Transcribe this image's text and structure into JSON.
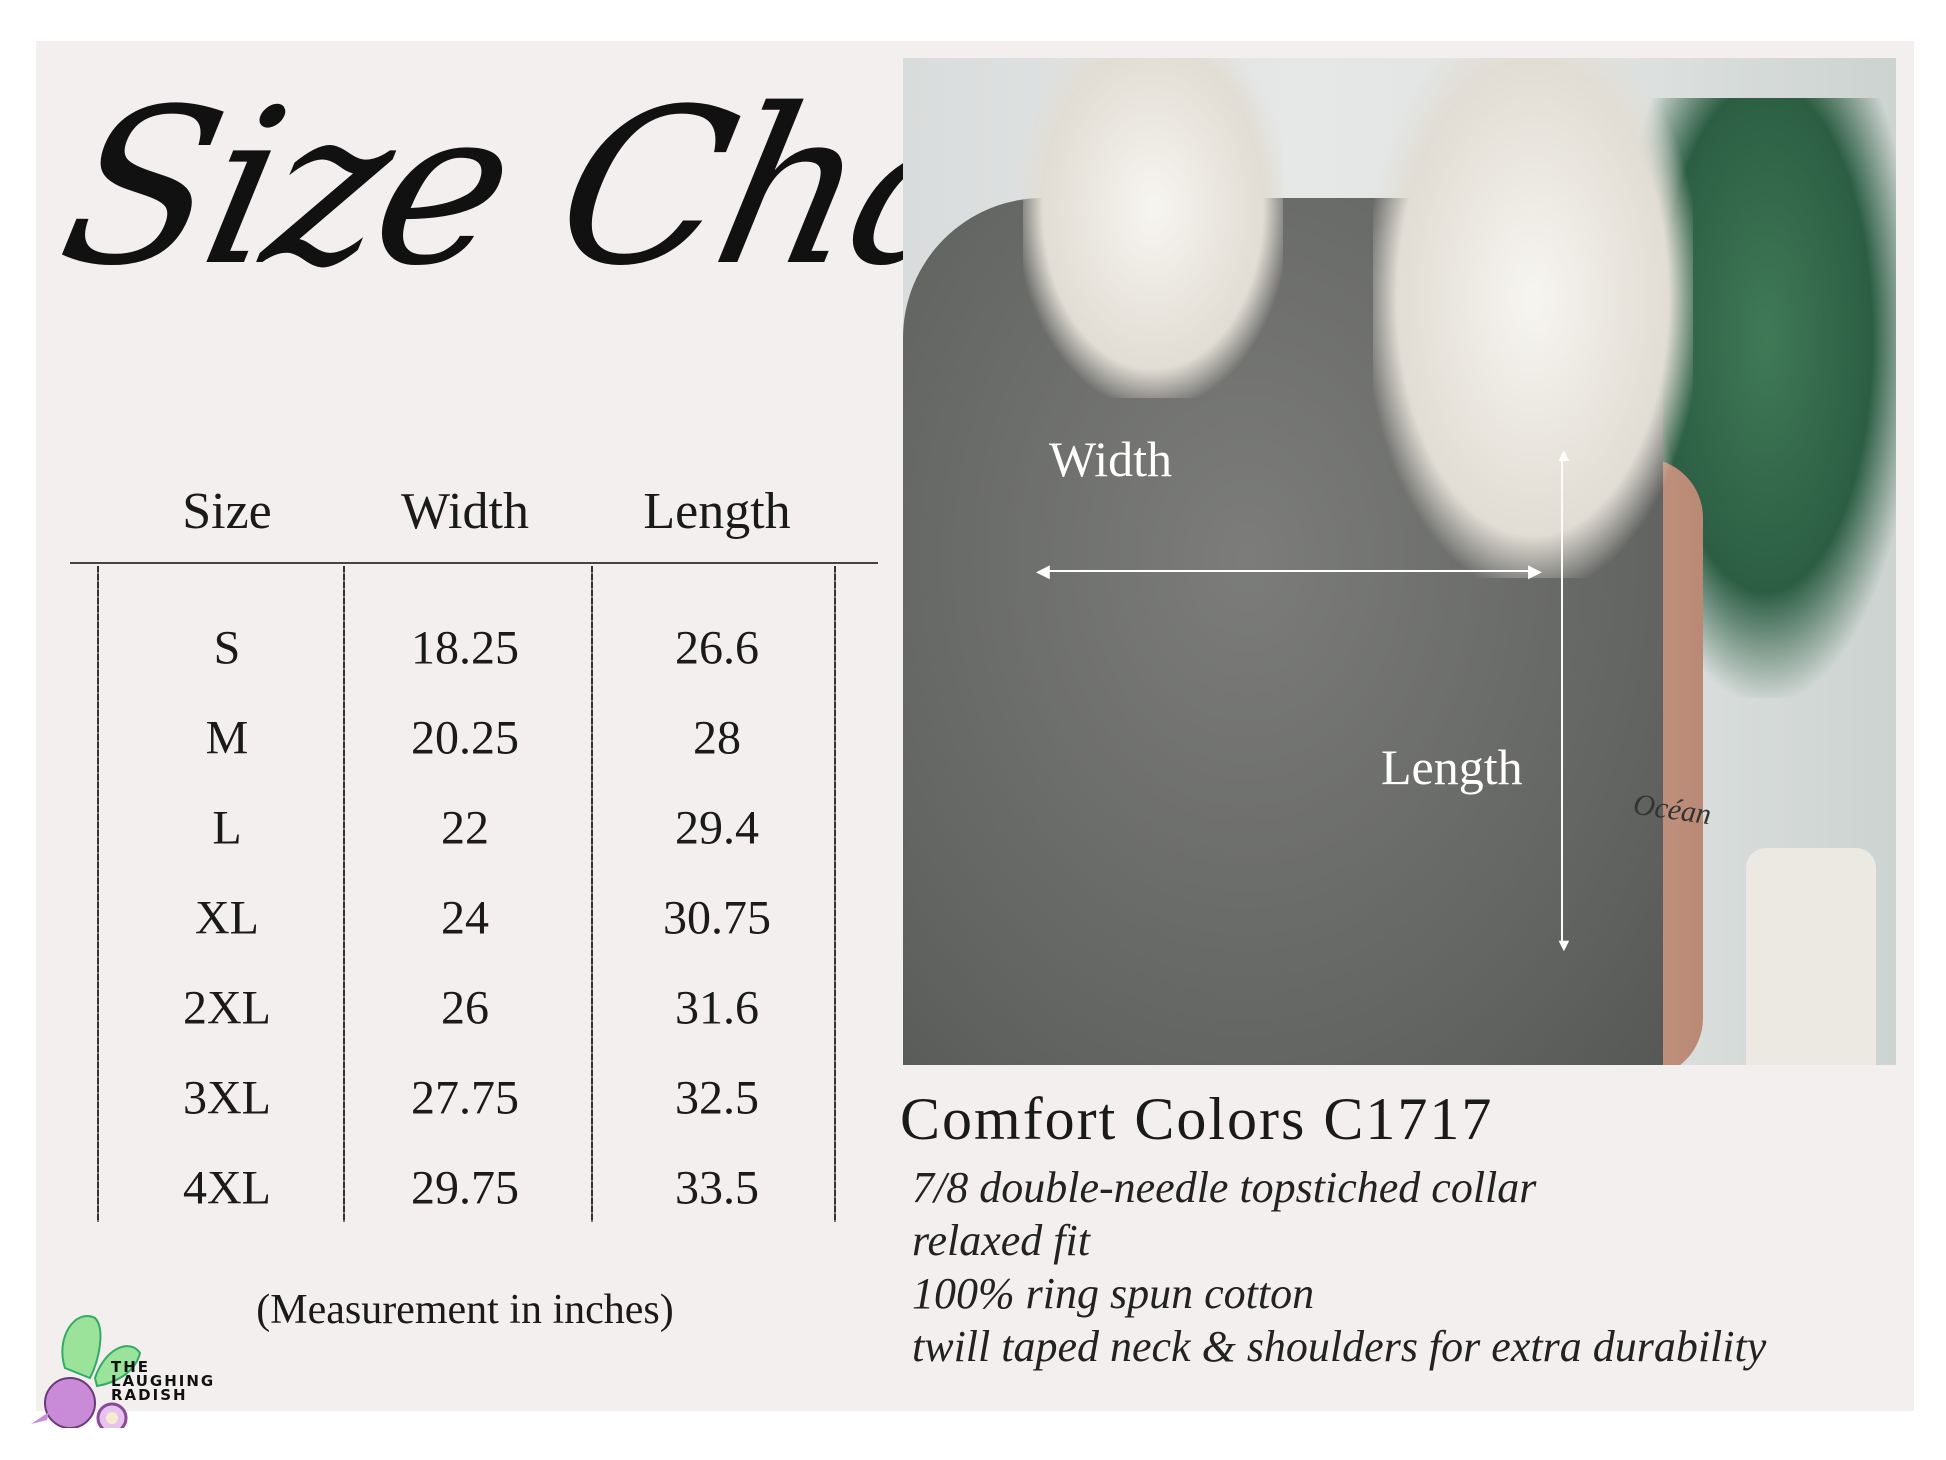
{
  "title": "Size Chart",
  "table": {
    "headers": [
      "Size",
      "Width",
      "Length"
    ],
    "rows": [
      [
        "S",
        "18.25",
        "26.6"
      ],
      [
        "M",
        "20.25",
        "28"
      ],
      [
        "L",
        "22",
        "29.4"
      ],
      [
        "XL",
        "24",
        "30.75"
      ],
      [
        "2XL",
        "26",
        "31.6"
      ],
      [
        "3XL",
        "27.75",
        "32.5"
      ],
      [
        "4XL",
        "29.75",
        "33.5"
      ]
    ],
    "note": "(Measurement in inches)"
  },
  "photo": {
    "width_label": "Width",
    "length_label": "Length",
    "tattoo": "Océan"
  },
  "product": {
    "name": "Comfort Colors C1717",
    "features": [
      "7/8 double-needle topstiched collar",
      "relaxed fit",
      "100% ring spun cotton",
      "twill taped neck & shoulders for extra durability"
    ]
  },
  "logo": {
    "text": "THE LAUGHING RADISH",
    "colors": {
      "radish": "#c98ad8",
      "leaves": "#9be39a"
    }
  }
}
